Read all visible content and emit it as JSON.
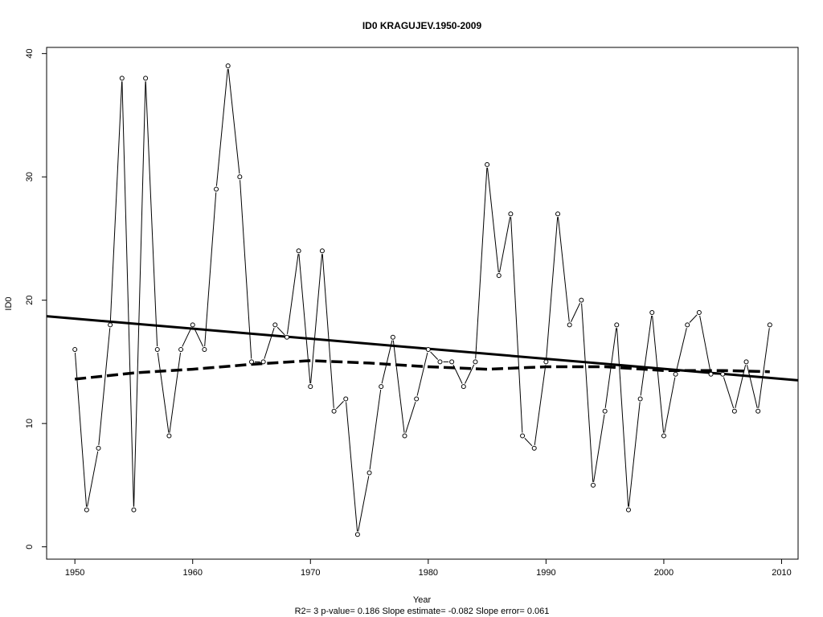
{
  "chart_data": {
    "type": "line",
    "title": "ID0    KRAGUJEV.1950-2009",
    "xlabel": "Year",
    "ylabel": "ID0",
    "footnote": "R2= 3  p-value= 0.186  Slope estimate= -0.082  Slope error= 0.061",
    "xlim": [
      1947.6,
      2011.4
    ],
    "ylim": [
      -1,
      40.5
    ],
    "x_ticks": [
      1950,
      1960,
      1970,
      1980,
      1990,
      2000,
      2010
    ],
    "y_ticks": [
      0,
      10,
      20,
      30,
      40
    ],
    "x_tick_labels": [
      "1950",
      "1960",
      "1970",
      "1980",
      "1990",
      "2000",
      "2010"
    ],
    "y_tick_labels": [
      "0",
      "10",
      "20",
      "30",
      "40"
    ],
    "grid": false,
    "legend": "none",
    "series": [
      {
        "style": "line-with-open-circles",
        "x": [
          1950,
          1951,
          1952,
          1953,
          1954,
          1955,
          1956,
          1957,
          1958,
          1959,
          1960,
          1961,
          1962,
          1963,
          1964,
          1965,
          1966,
          1967,
          1968,
          1969,
          1970,
          1971,
          1972,
          1973,
          1974,
          1975,
          1976,
          1977,
          1978,
          1979,
          1980,
          1981,
          1982,
          1983,
          1984,
          1985,
          1986,
          1987,
          1988,
          1989,
          1990,
          1991,
          1992,
          1993,
          1994,
          1995,
          1996,
          1997,
          1998,
          1999,
          2000,
          2001,
          2002,
          2003,
          2004,
          2005,
          2006,
          2007,
          2008,
          2009
        ],
        "values": [
          16,
          3,
          8,
          18,
          38,
          3,
          38,
          16,
          9,
          16,
          18,
          16,
          29,
          39,
          30,
          15,
          15,
          18,
          17,
          24,
          13,
          24,
          11,
          12,
          1,
          6,
          13,
          17,
          9,
          12,
          16,
          15,
          15,
          13,
          15,
          31,
          22,
          27,
          9,
          8,
          15,
          27,
          18,
          20,
          5,
          11,
          18,
          3,
          12,
          19,
          9,
          14,
          18,
          19,
          14,
          14,
          11,
          15,
          11,
          18
        ]
      },
      {
        "style": "thick-solid-trend",
        "x": [
          1947.6,
          2011.4
        ],
        "values": [
          18.7,
          13.5
        ]
      },
      {
        "style": "thick-dashed-smooth",
        "x": [
          1950,
          1955,
          1960,
          1965,
          1970,
          1975,
          1980,
          1985,
          1990,
          1995,
          2000,
          2005,
          2009
        ],
        "values": [
          13.6,
          14.1,
          14.4,
          14.8,
          15.1,
          14.9,
          14.6,
          14.4,
          14.6,
          14.6,
          14.3,
          14.3,
          14.2
        ]
      }
    ]
  }
}
